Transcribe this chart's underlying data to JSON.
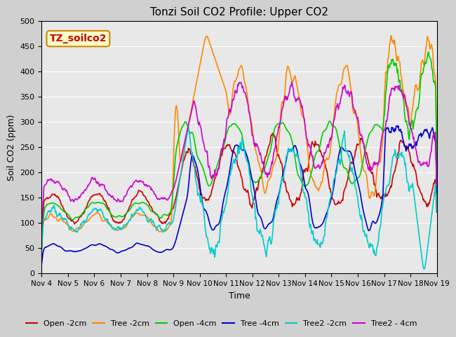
{
  "title": "Tonzi Soil CO2 Profile: Upper CO2",
  "xlabel": "Time",
  "ylabel": "Soil CO2 (ppm)",
  "ylim": [
    0,
    500
  ],
  "yticks": [
    0,
    50,
    100,
    150,
    200,
    250,
    300,
    350,
    400,
    450,
    500
  ],
  "plot_bg_color": "#e8e8e8",
  "series": {
    "Open -2cm": {
      "color": "#cc0000",
      "lw": 1.2
    },
    "Tree -2cm": {
      "color": "#ff8800",
      "lw": 1.2
    },
    "Open -4cm": {
      "color": "#00cc00",
      "lw": 1.2
    },
    "Tree -4cm": {
      "color": "#0000cc",
      "lw": 1.2
    },
    "Tree2 -2cm": {
      "color": "#00cccc",
      "lw": 1.2
    },
    "Tree2 - 4cm": {
      "color": "#cc00cc",
      "lw": 1.2
    }
  },
  "watermark": "TZ_soilco2",
  "watermark_color": "#cc0000",
  "watermark_bg": "#ffffcc",
  "watermark_border": "#cc8800",
  "n_days": 15,
  "pts_per_day": 48,
  "x_tick_labels": [
    "Nov 4",
    "Nov 5",
    "Nov 6",
    "Nov 7",
    "Nov 8",
    "Nov 9",
    "Nov 10",
    "Nov 11",
    "Nov 12",
    "Nov 13",
    "Nov 14",
    "Nov 15",
    "Nov 16",
    "Nov 17",
    "Nov 18",
    "Nov 19"
  ]
}
